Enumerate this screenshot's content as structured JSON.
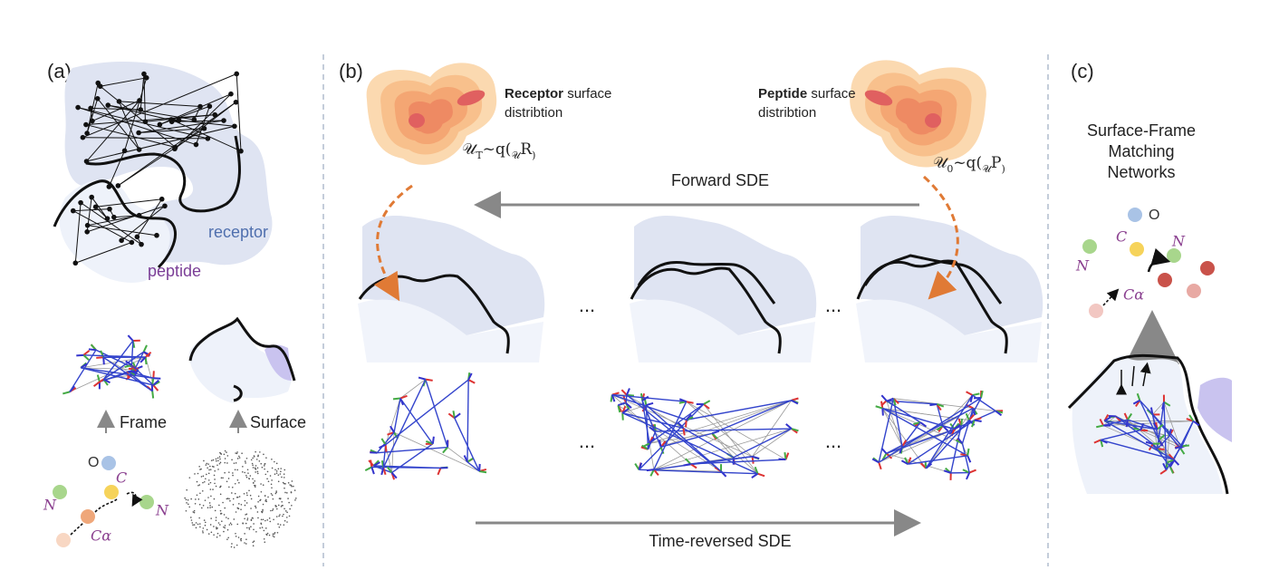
{
  "panel_a": {
    "label": "(a)",
    "receptor": "receptor",
    "peptide": "peptide",
    "frame": "Frame",
    "surface": "Surface",
    "atoms": {
      "o": "O",
      "c": "C",
      "n1": "N",
      "n2": "N",
      "ca": "Cα"
    }
  },
  "panel_b": {
    "label": "(b)",
    "receptor_dist": {
      "bold": "Receptor",
      "rest": " surface",
      "line2": "distribtion"
    },
    "receptor_formula": [
      "𝒰",
      "T",
      "~q(",
      "𝒰",
      "R",
      ")"
    ],
    "peptide_dist": {
      "bold": "Peptide",
      "rest": " surface",
      "line2": "distribtion"
    },
    "peptide_formula": [
      "𝒰",
      "0",
      "~q(",
      "𝒰",
      "P",
      ")"
    ],
    "forward": "Forward SDE",
    "reverse": "Time-reversed SDE",
    "ellipses": [
      "...",
      "...",
      "...",
      "..."
    ]
  },
  "panel_c": {
    "label": "(c)",
    "title": [
      "Surface-Frame",
      "Matching",
      "Networks"
    ],
    "atoms": {
      "o": "O",
      "c": "C",
      "n1": "N",
      "n2": "N",
      "ca": "Cα"
    }
  }
}
